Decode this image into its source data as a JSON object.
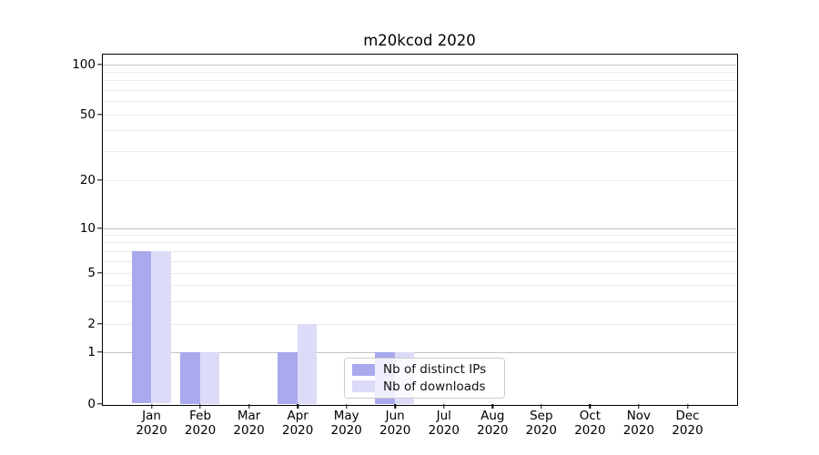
{
  "chart_data": {
    "type": "bar",
    "title": "m20kcod 2020",
    "categories": [
      {
        "month": "Jan",
        "year": "2020"
      },
      {
        "month": "Feb",
        "year": "2020"
      },
      {
        "month": "Mar",
        "year": "2020"
      },
      {
        "month": "Apr",
        "year": "2020"
      },
      {
        "month": "May",
        "year": "2020"
      },
      {
        "month": "Jun",
        "year": "2020"
      },
      {
        "month": "Jul",
        "year": "2020"
      },
      {
        "month": "Aug",
        "year": "2020"
      },
      {
        "month": "Sep",
        "year": "2020"
      },
      {
        "month": "Oct",
        "year": "2020"
      },
      {
        "month": "Nov",
        "year": "2020"
      },
      {
        "month": "Dec",
        "year": "2020"
      }
    ],
    "series": [
      {
        "name": "Nb of distinct IPs",
        "color": "#a9a9ee",
        "values": [
          7,
          1,
          0,
          1,
          0,
          1,
          0,
          0,
          0,
          0,
          0,
          0
        ]
      },
      {
        "name": "Nb of downloads",
        "color": "#dcdcf8",
        "values": [
          7,
          1,
          0,
          2,
          0,
          1,
          0,
          0,
          0,
          0,
          0,
          0
        ]
      }
    ],
    "y_ticks": [
      0,
      1,
      2,
      5,
      10,
      20,
      50,
      100
    ],
    "y_scale": "log above 1, linear 0-1",
    "ylim": [
      0,
      115
    ],
    "xlabel": "",
    "ylabel": "",
    "grid": "horizontal, major at 1/10/100, minor log subdivisions",
    "legend_position": "lower center (inside axes)"
  }
}
